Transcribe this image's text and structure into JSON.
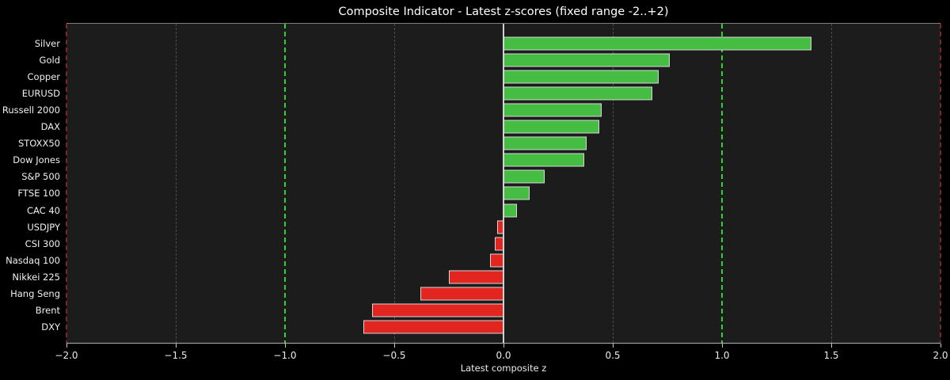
{
  "chart_data": {
    "type": "bar",
    "orientation": "horizontal",
    "title": "Composite Indicator - Latest z-scores (fixed range -2..+2)",
    "xlabel": "Latest composite z",
    "xlim": [
      -2,
      2
    ],
    "categories": [
      "Silver",
      "Gold",
      "Copper",
      "EURUSD",
      "Russell 2000",
      "DAX",
      "STOXX50",
      "Dow Jones",
      "S&P 500",
      "FTSE 100",
      "CAC 40",
      "USDJPY",
      "CSI 300",
      "Nasdaq 100",
      "Nikkei 225",
      "Hang Seng",
      "Brent",
      "DXY"
    ],
    "values": [
      1.41,
      0.76,
      0.71,
      0.68,
      0.45,
      0.44,
      0.38,
      0.37,
      0.19,
      0.12,
      0.06,
      -0.03,
      -0.04,
      -0.06,
      -0.25,
      -0.38,
      -0.6,
      -0.64
    ],
    "xticks": [
      -2.0,
      -1.5,
      -1.0,
      -0.5,
      0.0,
      0.5,
      1.0,
      1.5,
      2.0
    ],
    "xtick_labels": [
      "−2.0",
      "−1.5",
      "−1.0",
      "−0.5",
      "0.0",
      "0.5",
      "1.0",
      "1.5",
      "2.0"
    ],
    "gridlines": [
      -1.5,
      -0.5,
      0.5,
      1.5
    ],
    "reference_lines": [
      {
        "x": -2.0,
        "color": "#7e2323"
      },
      {
        "x": -1.0,
        "color": "#2fd32f"
      },
      {
        "x": 1.0,
        "color": "#2fd32f"
      },
      {
        "x": 2.0,
        "color": "#7e2323"
      }
    ],
    "zero_line": 0.0,
    "legend": null,
    "colors": {
      "positive_bar": "#45bd43",
      "negative_bar": "#e2251f",
      "bar_edge": "#d8d8d8",
      "grid": "#4e4e4e",
      "zero_line": "#cfcfcf",
      "figure_background": "#000000",
      "plot_background": "#1c1c1c",
      "text": "#ffffff"
    }
  }
}
